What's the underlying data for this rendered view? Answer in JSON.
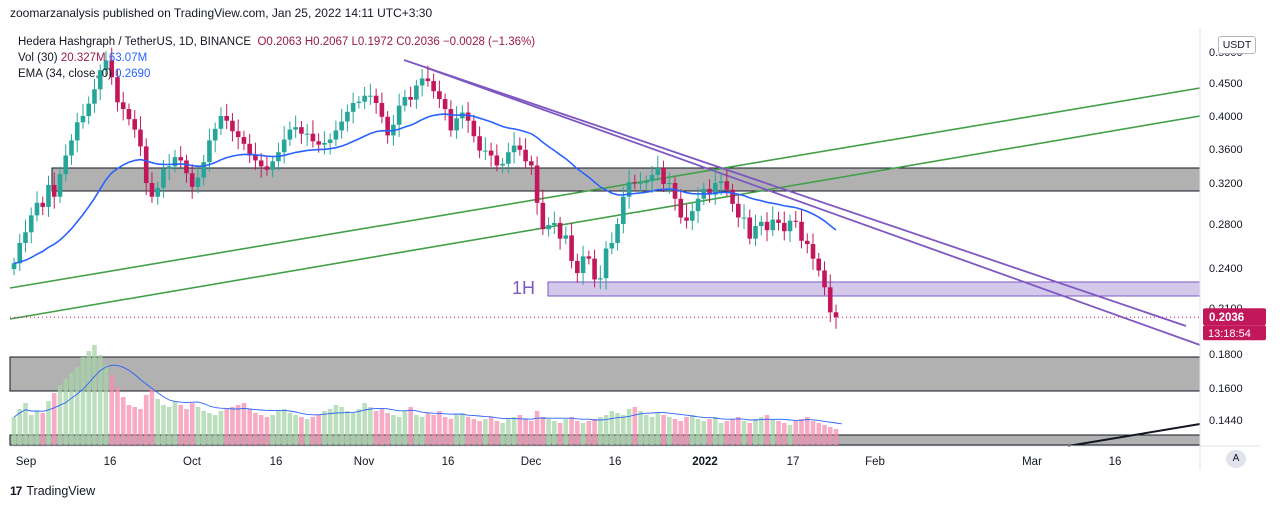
{
  "publish_line": "zoomarzanalysis published on TradingView.com, Jan 25, 2022 14:11 UTC+3:30",
  "legend": {
    "symbol": "Hedera Hashgraph / TetherUS, 1D, BINANCE",
    "o": "O0.2063",
    "h": "H0.2067",
    "l": "L0.1972",
    "c": "C0.2036",
    "change": "−0.0028 (−1.36%)",
    "vol_label": "Vol (30)",
    "vol_value": "20.327M",
    "vol_ma": "63.07M",
    "ema_label": "EMA (34, close, 0)",
    "ema_value": "0.2690"
  },
  "currency": "USDT",
  "auto_button": "A",
  "brand": {
    "logo": "17",
    "name": "TradingView"
  },
  "chart_data": {
    "type": "candlestick",
    "title": "Hedera Hashgraph / TetherUS, 1D, BINANCE",
    "y_ticks": [
      "0.5000",
      "0.4500",
      "0.4000",
      "0.3600",
      "0.3200",
      "0.2800",
      "0.2400",
      "0.2100",
      "0.1800",
      "0.1600",
      "0.1440"
    ],
    "x_ticks": [
      "Sep",
      "16",
      "Oct",
      "16",
      "Nov",
      "16",
      "Dec",
      "16",
      "2022",
      "17",
      "Feb",
      "Mar",
      "16"
    ],
    "last_price": "0.2036",
    "countdown": "13:18:54",
    "annotation": "1H",
    "closes": [
      0.244,
      0.262,
      0.272,
      0.288,
      0.3,
      0.296,
      0.318,
      0.306,
      0.33,
      0.352,
      0.37,
      0.392,
      0.4,
      0.418,
      0.44,
      0.47,
      0.486,
      0.459,
      0.42,
      0.41,
      0.396,
      0.383,
      0.363,
      0.32,
      0.306,
      0.315,
      0.336,
      0.339,
      0.35,
      0.346,
      0.331,
      0.316,
      0.326,
      0.344,
      0.37,
      0.384,
      0.4,
      0.394,
      0.381,
      0.374,
      0.366,
      0.352,
      0.346,
      0.339,
      0.335,
      0.345,
      0.356,
      0.371,
      0.383,
      0.386,
      0.378,
      0.378,
      0.369,
      0.365,
      0.367,
      0.371,
      0.382,
      0.393,
      0.406,
      0.419,
      0.421,
      0.43,
      0.43,
      0.419,
      0.399,
      0.376,
      0.389,
      0.415,
      0.428,
      0.424,
      0.446,
      0.457,
      0.453,
      0.437,
      0.425,
      0.41,
      0.382,
      0.397,
      0.405,
      0.394,
      0.375,
      0.358,
      0.358,
      0.352,
      0.34,
      0.342,
      0.356,
      0.364,
      0.359,
      0.345,
      0.34,
      0.3,
      0.275,
      0.279,
      0.281,
      0.266,
      0.269,
      0.246,
      0.236,
      0.25,
      0.248,
      0.231,
      0.232,
      0.257,
      0.262,
      0.28,
      0.306,
      0.321,
      0.32,
      0.32,
      0.322,
      0.329,
      0.337,
      0.319,
      0.32,
      0.304,
      0.286,
      0.283,
      0.292,
      0.304,
      0.314,
      0.308,
      0.32,
      0.322,
      0.313,
      0.299,
      0.286,
      0.286,
      0.266,
      0.278,
      0.282,
      0.274,
      0.284,
      0.281,
      0.273,
      0.283,
      0.282,
      0.264,
      0.261,
      0.248,
      0.238,
      0.225,
      0.207,
      0.2036
    ],
    "volumes": [
      28,
      36,
      42,
      30,
      34,
      32,
      44,
      52,
      60,
      66,
      72,
      78,
      88,
      94,
      100,
      90,
      80,
      70,
      58,
      48,
      40,
      38,
      36,
      50,
      56,
      46,
      40,
      38,
      44,
      40,
      36,
      42,
      38,
      34,
      32,
      30,
      34,
      36,
      38,
      40,
      42,
      36,
      32,
      30,
      28,
      30,
      34,
      36,
      32,
      30,
      28,
      26,
      28,
      30,
      34,
      36,
      40,
      38,
      34,
      32,
      36,
      42,
      38,
      34,
      36,
      32,
      30,
      28,
      34,
      38,
      30,
      28,
      32,
      30,
      34,
      28,
      26,
      30,
      32,
      28,
      26,
      24,
      26,
      28,
      24,
      22,
      26,
      28,
      30,
      26,
      24,
      34,
      28,
      26,
      24,
      22,
      26,
      28,
      24,
      22,
      24,
      26,
      28,
      30,
      34,
      32,
      30,
      36,
      38,
      34,
      30,
      28,
      32,
      30,
      28,
      26,
      24,
      28,
      30,
      26,
      24,
      26,
      28,
      22,
      24,
      26,
      28,
      24,
      22,
      26,
      28,
      30,
      26,
      24,
      22,
      20,
      24,
      26,
      28,
      24,
      22,
      20,
      18,
      16,
      14
    ],
    "ema_note": "EMA (34, close, 0) line overlay",
    "vol_ma_note": "Volume moving average overlay"
  }
}
